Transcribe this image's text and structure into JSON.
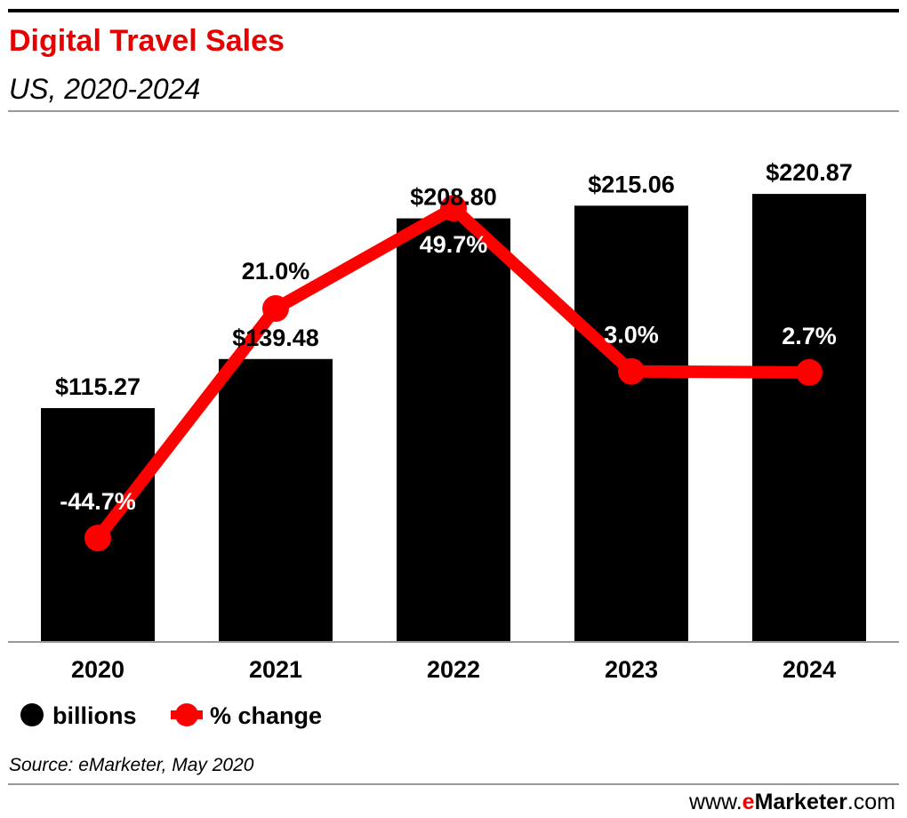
{
  "title": "Digital Travel Sales",
  "subtitle": "US, 2020-2024",
  "source": "Source: eMarketer, May 2020",
  "brand": {
    "prefix": "www.",
    "accent": "e",
    "name": "Marketer",
    "suffix": ".com"
  },
  "legend": {
    "bars_label": "billions",
    "line_label": "% change"
  },
  "colors": {
    "bars": "#000000",
    "line": "#ff0000",
    "title": "#e60000",
    "rule": "#999999",
    "text": "#000000"
  },
  "chart_data": {
    "type": "bar",
    "categories": [
      "2020",
      "2021",
      "2022",
      "2023",
      "2024"
    ],
    "series": [
      {
        "name": "billions",
        "type": "bar",
        "values": [
          115.27,
          139.48,
          208.8,
          215.06,
          220.87
        ],
        "labels": [
          "$115.27",
          "$139.48",
          "$208.80",
          "$215.06",
          "$220.87"
        ]
      },
      {
        "name": "% change",
        "type": "line",
        "values": [
          -44.7,
          21.0,
          49.7,
          3.0,
          2.7
        ],
        "labels": [
          "-44.7%",
          "21.0%",
          "49.7%",
          "3.0%",
          "2.7%"
        ]
      }
    ],
    "title": "Digital Travel Sales",
    "subtitle": "US, 2020-2024",
    "legend_position": "bottom-left",
    "grid": false
  }
}
